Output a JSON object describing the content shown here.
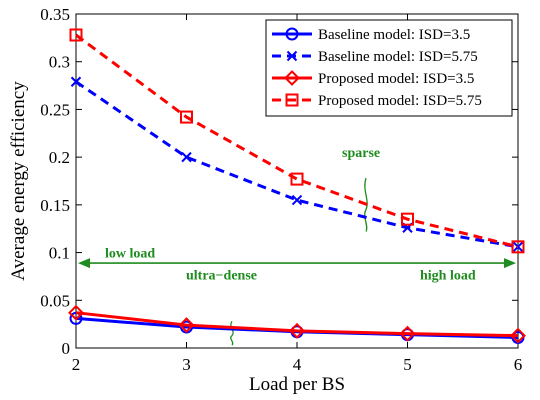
{
  "chart_data": {
    "type": "line",
    "xlabel": "Load per BS",
    "ylabel": "Average energy efficiency",
    "xlim": [
      2,
      6
    ],
    "ylim": [
      0,
      0.35
    ],
    "x_ticks": [
      "2",
      "3",
      "4",
      "5",
      "6"
    ],
    "y_ticks": [
      "0",
      "0.05",
      "0.1",
      "0.15",
      "0.2",
      "0.25",
      "0.3",
      "0.35"
    ],
    "x": [
      2,
      3,
      4,
      5,
      6
    ],
    "grid": false,
    "legend_position": "top-right",
    "series": [
      {
        "name": "Baseline model: ISD=3.5",
        "values": [
          0.031,
          0.022,
          0.017,
          0.014,
          0.011
        ],
        "color": "#0000ff",
        "line": "solid",
        "marker": "circle"
      },
      {
        "name": "Baseline model: ISD=5.75",
        "values": [
          0.279,
          0.2,
          0.155,
          0.126,
          0.106
        ],
        "color": "#0000ff",
        "line": "dashed",
        "marker": "x"
      },
      {
        "name": "Proposed model: ISD=3.5",
        "values": [
          0.037,
          0.024,
          0.018,
          0.015,
          0.013
        ],
        "color": "#ff0000",
        "line": "solid",
        "marker": "diamond"
      },
      {
        "name": "Proposed model: ISD=5.75",
        "values": [
          0.328,
          0.242,
          0.177,
          0.135,
          0.106
        ],
        "color": "#ff0000",
        "line": "dashed",
        "marker": "square"
      }
    ],
    "annotations": {
      "sparse": "sparse",
      "ultra_dense": "ultra−dense",
      "low_load": "low load",
      "high_load": "high load"
    },
    "annotation_color": "#1e8c1e"
  }
}
